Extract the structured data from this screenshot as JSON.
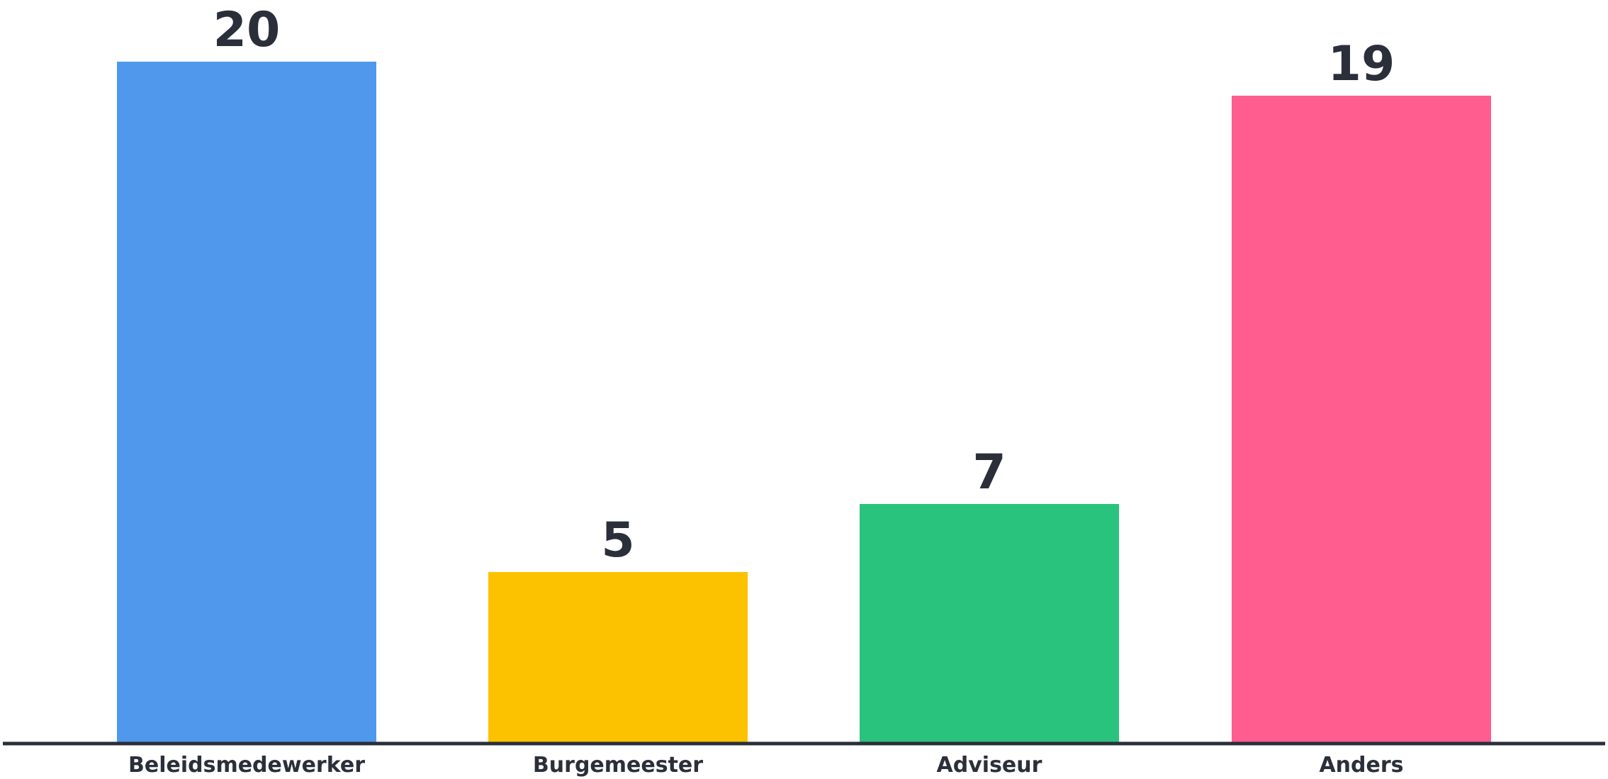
{
  "chart_data": {
    "type": "bar",
    "categories": [
      "Beleidsmedewerker",
      "Burgemeester",
      "Adviseur",
      "Anders"
    ],
    "values": [
      20,
      5,
      7,
      19
    ],
    "data_labels": [
      "20",
      "5",
      "7",
      "19"
    ],
    "colors": [
      "#4f98ec",
      "#fcc200",
      "#29c37d",
      "#ff5c8f"
    ],
    "axis_color": "#2a2f3a",
    "title": "",
    "xlabel": "",
    "ylabel": "",
    "ylim": [
      0,
      20
    ],
    "grid": false,
    "legend": "none"
  }
}
